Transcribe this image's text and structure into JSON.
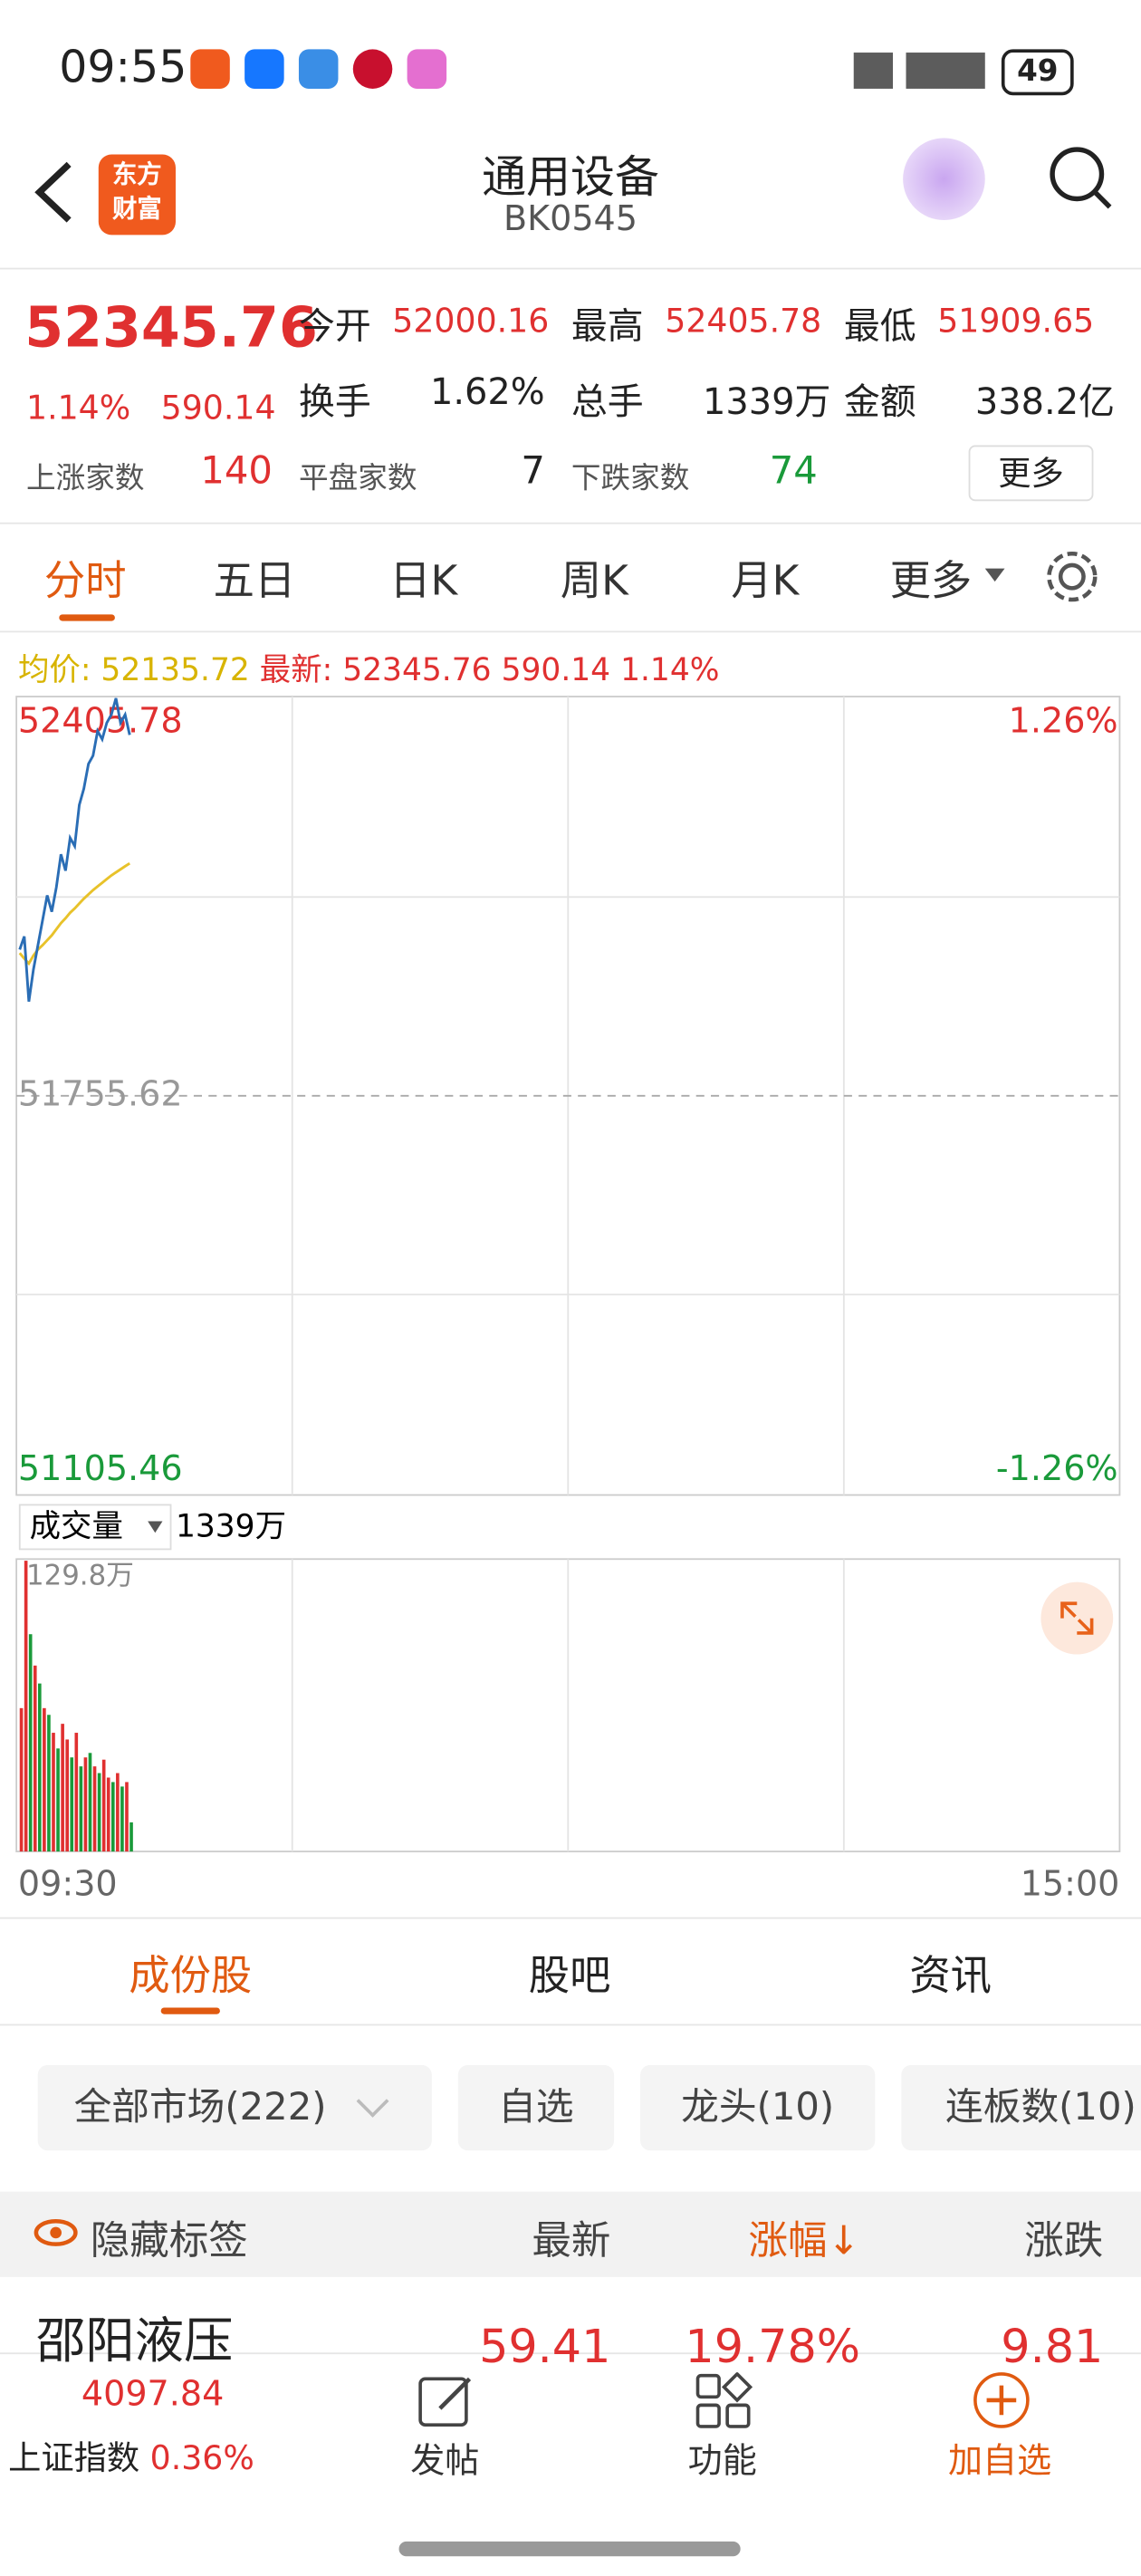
{
  "status_bar": {
    "time": "09:55",
    "battery": "49"
  },
  "header": {
    "logo": [
      "东方",
      "财富"
    ],
    "title": "通用设备",
    "code": "BK0545"
  },
  "quote": {
    "price": "52345.76",
    "change_pct": "1.14%",
    "change": "590.14",
    "stats": [
      [
        "今开",
        "52000.16"
      ],
      [
        "最高",
        "52405.78"
      ],
      [
        "最低",
        "51909.65"
      ],
      [
        "换手",
        "1.62%"
      ],
      [
        "总手",
        "1339万"
      ],
      [
        "金额",
        "338.2亿"
      ]
    ],
    "counts": [
      [
        "上涨家数",
        "140"
      ],
      [
        "平盘家数",
        "7"
      ],
      [
        "下跌家数",
        "74"
      ]
    ],
    "more": "更多"
  },
  "chart_tabs": [
    "分时",
    "五日",
    "日K",
    "周K",
    "月K",
    "更多"
  ],
  "info_line": {
    "avg_label": "均价:",
    "avg": "52135.72",
    "last_label": "最新:",
    "last": "52345.76",
    "change": "590.14",
    "change_pct": "1.14%"
  },
  "chart_data": [
    {
      "type": "line",
      "ylim": [
        51105.46,
        52405.78
      ],
      "yticks": [
        52405.78,
        51755.62,
        51105.46
      ],
      "y2lim": [
        -1.26,
        1.26
      ],
      "y2ticks": [
        {
          "value": 1.26,
          "label": "1.26%"
        },
        {
          "value": -1.26,
          "label": "-1.26%"
        }
      ],
      "series": [
        {
          "name": "最新:",
          "color": "#2a6db5",
          "values": [
            51994.7,
            52016.2,
            51909.65,
            51962.4,
            52002.8,
            52043.1,
            52083.4,
            52056.5,
            52096.8,
            52150.5,
            52123.7,
            52177.4,
            52164.0,
            52231.1,
            52258.0,
            52298.3,
            52311.8,
            52352.1,
            52338.6,
            52365.5,
            52378.9,
            52405.78,
            52365.5,
            52378.9,
            52345.76
          ]
        },
        {
          "name": "均价:",
          "color": "#e8c22a",
          "axis": "y",
          "values": [
            51989,
            51980,
            51972,
            51985,
            51995,
            52002,
            52010,
            52018,
            52028,
            52038,
            52046,
            52055,
            52062,
            52070,
            52078,
            52085,
            52092,
            52098,
            52104,
            52110,
            52116,
            52121,
            52126,
            52131,
            52135.72
          ]
        }
      ]
    },
    {
      "type": "bar",
      "label": "成交量",
      "total": "1339万",
      "ylim": [
        0,
        129.8
      ],
      "yticks": [
        {
          "value": 129.8,
          "label": "129.8万"
        }
      ],
      "x_labels": [
        "09:30",
        "15:00"
      ],
      "values": [
        64,
        129.8,
        97,
        83,
        75,
        64,
        61,
        53,
        46,
        57,
        50,
        42,
        53,
        38,
        42,
        44,
        38,
        35,
        41,
        33,
        31,
        35,
        29,
        31,
        13
      ],
      "colors": [
        "#e03030",
        "#e03030",
        "#1a9a3a",
        "#e03030",
        "#1a9a3a",
        "#e03030",
        "#1a9a3a",
        "#e03030",
        "#1a9a3a",
        "#e03030",
        "#e03030",
        "#1a9a3a",
        "#e03030",
        "#1a9a3a",
        "#e03030",
        "#1a9a3a",
        "#e03030",
        "#1a9a3a",
        "#e03030",
        "#e03030",
        "#1a9a3a",
        "#e03030",
        "#1a9a3a",
        "#e03030",
        "#1a9a3a"
      ]
    }
  ],
  "section_tabs": [
    "成份股",
    "股吧",
    "资讯"
  ],
  "filters": [
    "全部市场(222)",
    "自选",
    "龙头(10)",
    "连板数(10)"
  ],
  "table": {
    "header": [
      "隐藏标签",
      "最新",
      "涨幅↓",
      "涨跌"
    ],
    "rows": [
      [
        "邵阳液压",
        "59.41",
        "19.78%",
        "9.81"
      ]
    ]
  },
  "bottom_bar": {
    "index_value": "4097.84",
    "index_name": "上证指数",
    "index_change": "0.36%",
    "buttons": [
      "发帖",
      "功能",
      "加自选"
    ]
  }
}
